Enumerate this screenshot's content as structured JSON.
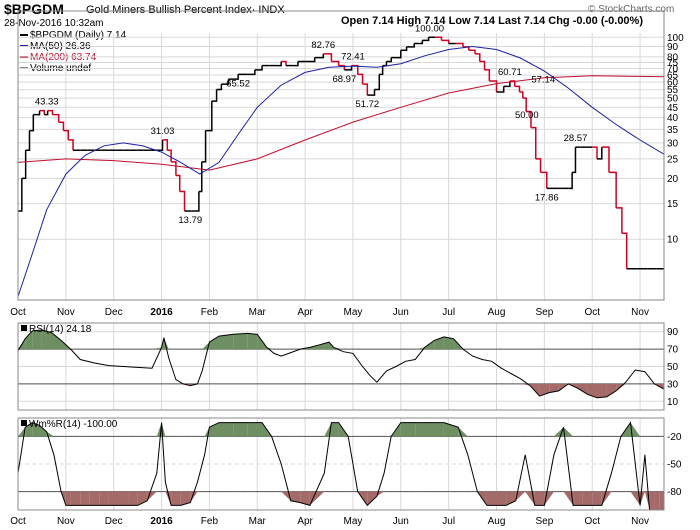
{
  "header": {
    "symbol": "$BPGDM",
    "description": "Gold Miners Bullish Percent Index· INDX",
    "date": "28-Nov-2016 10:32am",
    "quote": "Open 7.14  High 7.14  Low 7.14  Last 7.14  Chg -0.00 (-0.00%)",
    "credit": "© StockCharts.com"
  },
  "legend": {
    "main": "$BPGDM (Daily) 7.14",
    "ma50": "MA(50) 26.36",
    "ma200": "MA(200) 63.74",
    "volume": "Volume undef"
  },
  "colors": {
    "up": "#000000",
    "down": "#d00020",
    "ma50": "#1a22a0",
    "ma200": "#c0102e",
    "overbought_fill": "#6d8f62",
    "oversold_fill": "#a46a68",
    "grid": "#d8d8d8"
  },
  "chart_data": [
    {
      "type": "line",
      "title": "$BPGDM (Daily) 7.14",
      "y_scale": "log",
      "ylim": [
        5,
        105
      ],
      "x_tick_labels": [
        "Oct",
        "Nov",
        "Dec",
        "2016",
        "Feb",
        "Mar",
        "Apr",
        "May",
        "Jun",
        "Jul",
        "Aug",
        "Sep",
        "Oct",
        "Nov"
      ],
      "y_tick_labels": [
        "100",
        "90",
        "80",
        "75",
        "70",
        "65",
        "60",
        "55",
        "50",
        "45",
        "40",
        "35",
        "30",
        "25",
        "20",
        "15",
        "10"
      ],
      "annotations": [
        "43.33",
        "31.03",
        "13.79",
        "65.52",
        "82.76",
        "72.41",
        "68.97",
        "51.72",
        "100.00",
        "60.71",
        "57.14",
        "50.00",
        "28.57",
        "17.86"
      ],
      "series": [
        {
          "name": "$BPGDM",
          "x_month": [
            0,
            0.08,
            0.16,
            0.24,
            0.32,
            0.45,
            0.55,
            0.62,
            0.72,
            0.85,
            0.95,
            1.05,
            1.15,
            1.3,
            1.45,
            1.6,
            1.75,
            1.9,
            2.05,
            2.2,
            2.35,
            2.5,
            2.62,
            2.75,
            2.88,
            2.97,
            3.02,
            3.12,
            3.2,
            3.3,
            3.38,
            3.48,
            3.62,
            3.7,
            3.78,
            3.84,
            3.92,
            4.05,
            4.15,
            4.25,
            4.4,
            4.6,
            4.8,
            4.95,
            5.1,
            5.25,
            5.4,
            5.5,
            5.6,
            5.75,
            5.85,
            6.0,
            6.2,
            6.38,
            6.55,
            6.7,
            6.82,
            6.97,
            7.1,
            7.2,
            7.3,
            7.45,
            7.55,
            7.62,
            7.7,
            7.8,
            7.88,
            8.0,
            8.12,
            8.28,
            8.45,
            8.58,
            8.72,
            8.85,
            9.0,
            9.15,
            9.3,
            9.42,
            9.55,
            9.65,
            9.75,
            9.85,
            10.0,
            10.15,
            10.28,
            10.38,
            10.48,
            10.55,
            10.62,
            10.72,
            10.82,
            10.92,
            11.05,
            11.2,
            11.35,
            11.5,
            11.58,
            11.65,
            11.75,
            11.85,
            12.0,
            12.1,
            12.2,
            12.35,
            12.5,
            12.62,
            12.72,
            12.82,
            12.92,
            13.0,
            13.08,
            13.16,
            13.25,
            13.35,
            13.5
          ],
          "values": [
            13.79,
            20,
            27.59,
            34.48,
            41.38,
            43.33,
            41.38,
            43.33,
            41.38,
            37.93,
            34.48,
            31.03,
            27.59,
            27.59,
            27.59,
            27.59,
            27.59,
            27.59,
            27.59,
            27.59,
            27.59,
            27.59,
            27.59,
            27.59,
            27.59,
            27.59,
            31.03,
            27.59,
            24.14,
            20.69,
            17.24,
            13.79,
            13.79,
            13.79,
            17.24,
            24.14,
            34.48,
            48.28,
            55.17,
            58.62,
            62.07,
            65.52,
            65.52,
            68.97,
            72.41,
            72.41,
            72.41,
            75.86,
            72.41,
            72.41,
            75.86,
            75.86,
            79.31,
            82.76,
            75.86,
            72.41,
            68.97,
            72.41,
            65.52,
            58.62,
            51.72,
            55.17,
            65.52,
            72.41,
            75.86,
            79.31,
            79.31,
            86.21,
            89.66,
            93.1,
            96.55,
            100.0,
            100.0,
            96.55,
            93.1,
            93.1,
            89.66,
            86.21,
            82.76,
            75.86,
            68.97,
            60.71,
            53.57,
            57.14,
            60.71,
            57.14,
            53.57,
            50.0,
            42.86,
            35.71,
            25.0,
            21.43,
            17.86,
            17.86,
            17.86,
            17.86,
            21.43,
            28.57,
            28.57,
            28.57,
            28.57,
            25.0,
            28.57,
            21.43,
            14.29,
            10.71,
            7.14,
            7.14,
            7.14,
            7.14,
            7.14,
            7.14,
            7.14,
            7.14,
            7.14
          ]
        },
        {
          "name": "MA(50) 26.36",
          "x_month": [
            0,
            0.3,
            0.6,
            1.0,
            1.4,
            1.8,
            2.2,
            2.6,
            3.0,
            3.4,
            3.8,
            4.2,
            4.6,
            5.0,
            5.5,
            6.0,
            6.5,
            7.0,
            7.5,
            8.0,
            8.5,
            9.0,
            9.5,
            10.0,
            10.5,
            11.0,
            11.5,
            12.0,
            12.5,
            13.0,
            13.5
          ],
          "values": [
            5.2,
            8.5,
            14,
            21,
            26,
            29,
            30,
            29,
            27,
            24,
            21,
            24,
            33,
            45,
            58,
            67,
            71,
            72,
            71,
            74,
            81,
            87,
            90,
            87,
            79,
            68,
            56,
            45,
            37,
            31,
            26.36
          ]
        },
        {
          "name": "MA(200) 63.74",
          "x_month": [
            0,
            1,
            2,
            3,
            4,
            5,
            6,
            7,
            8,
            9,
            10,
            11,
            12,
            13,
            13.5
          ],
          "values": [
            24,
            25,
            24.5,
            23.5,
            22,
            25,
            31,
            38,
            45,
            53,
            59,
            63,
            64.5,
            64,
            63.74
          ]
        }
      ]
    },
    {
      "type": "line",
      "title": "RSI(14) 24.18",
      "ylim": [
        0,
        100
      ],
      "y_tick_labels": [
        "90",
        "70",
        "50",
        "30",
        "10"
      ],
      "reference_lines": [
        30,
        70
      ],
      "series": [
        {
          "name": "RSI(14)",
          "x_month": [
            0,
            0.15,
            0.3,
            0.5,
            0.7,
            0.9,
            1.1,
            1.3,
            1.6,
            1.9,
            2.2,
            2.5,
            2.8,
            3.0,
            3.05,
            3.15,
            3.3,
            3.45,
            3.6,
            3.75,
            3.85,
            4.0,
            4.2,
            4.5,
            4.8,
            5.0,
            5.2,
            5.35,
            5.5,
            5.7,
            5.9,
            6.1,
            6.3,
            6.5,
            6.6,
            6.8,
            7.0,
            7.2,
            7.35,
            7.5,
            7.7,
            7.9,
            8.1,
            8.3,
            8.5,
            8.7,
            8.9,
            9.1,
            9.3,
            9.5,
            9.7,
            9.9,
            10.1,
            10.3,
            10.5,
            10.7,
            10.9,
            11.1,
            11.3,
            11.5,
            11.7,
            11.9,
            12.1,
            12.3,
            12.5,
            12.7,
            12.9,
            13.1,
            13.3,
            13.5
          ],
          "values": [
            68,
            82,
            91,
            92,
            89,
            80,
            70,
            58,
            54,
            51,
            50,
            49,
            48,
            72,
            83,
            60,
            35,
            30,
            28,
            30,
            45,
            78,
            85,
            87,
            88,
            87,
            72,
            65,
            62,
            66,
            70,
            72,
            75,
            78,
            72,
            67,
            65,
            50,
            40,
            32,
            45,
            50,
            56,
            58,
            72,
            80,
            84,
            82,
            70,
            62,
            58,
            56,
            48,
            42,
            36,
            28,
            16,
            20,
            22,
            30,
            25,
            18,
            14,
            15,
            22,
            32,
            46,
            44,
            30,
            24.18
          ]
        }
      ]
    },
    {
      "type": "line",
      "title": "Wm%R(14) -100.00",
      "ylim": [
        -100,
        0
      ],
      "y_tick_labels": [
        "-20",
        "-50",
        "-80"
      ],
      "reference_lines": [
        -20,
        -80
      ],
      "series": [
        {
          "name": "Wm%R(14)",
          "x_month": [
            0,
            0.15,
            0.3,
            0.45,
            0.6,
            0.75,
            0.9,
            1.0,
            1.1,
            1.3,
            1.5,
            1.7,
            1.9,
            2.1,
            2.3,
            2.5,
            2.7,
            2.9,
            3.0,
            3.08,
            3.2,
            3.4,
            3.6,
            3.75,
            3.9,
            4.0,
            4.2,
            4.5,
            4.8,
            5.1,
            5.3,
            5.5,
            5.7,
            5.9,
            6.1,
            6.4,
            6.55,
            6.7,
            6.9,
            7.1,
            7.3,
            7.5,
            7.65,
            7.8,
            8.0,
            8.3,
            8.6,
            8.9,
            9.2,
            9.4,
            9.6,
            9.8,
            10.0,
            10.2,
            10.4,
            10.6,
            10.8,
            11.0,
            11.2,
            11.4,
            11.6,
            11.8,
            12.0,
            12.2,
            12.4,
            12.6,
            12.8,
            13.0,
            13.1,
            13.2,
            13.3,
            13.4,
            13.5
          ],
          "values": [
            -60,
            -10,
            -5,
            -8,
            -15,
            -40,
            -80,
            -95,
            -95,
            -95,
            -95,
            -95,
            -95,
            -95,
            -95,
            -95,
            -90,
            -60,
            -5,
            -70,
            -95,
            -95,
            -92,
            -70,
            -40,
            -10,
            -5,
            -5,
            -5,
            -5,
            -20,
            -50,
            -90,
            -92,
            -95,
            -60,
            -5,
            -5,
            -20,
            -80,
            -95,
            -85,
            -60,
            -20,
            -5,
            -5,
            -5,
            -5,
            -10,
            -40,
            -80,
            -95,
            -95,
            -95,
            -90,
            -40,
            -95,
            -95,
            -40,
            -10,
            -95,
            -95,
            -95,
            -95,
            -60,
            -20,
            -5,
            -95,
            -40,
            -100,
            -100,
            -100,
            -100
          ]
        }
      ]
    }
  ]
}
